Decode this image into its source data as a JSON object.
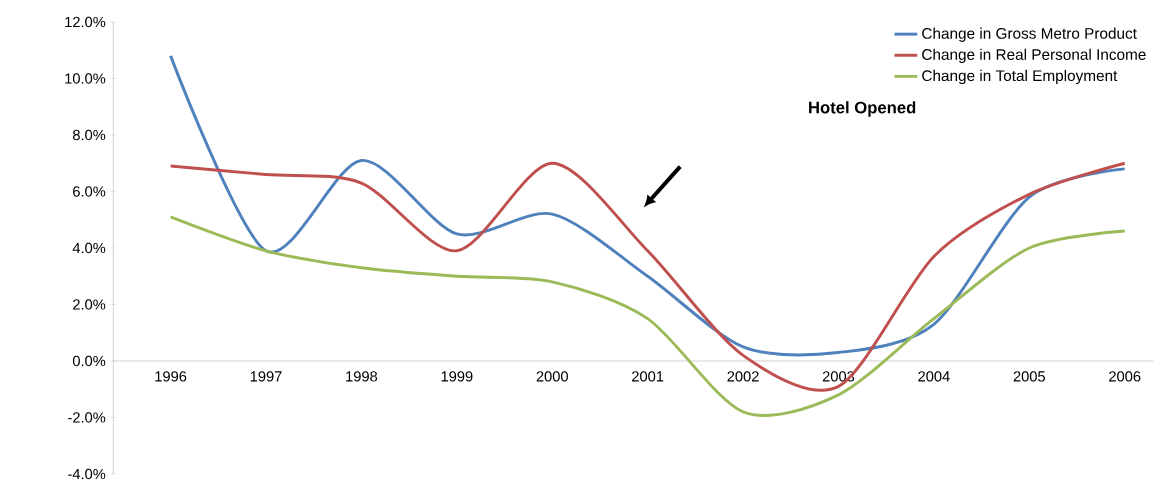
{
  "chart_data": {
    "type": "line",
    "categories": [
      "1996",
      "1997",
      "1998",
      "1999",
      "2000",
      "2001",
      "2002",
      "2003",
      "2004",
      "2005",
      "2006"
    ],
    "series": [
      {
        "name": "Change in Gross Metro Product",
        "color": "#4f81bd",
        "values": [
          10.8,
          3.9,
          7.1,
          4.5,
          5.2,
          3.0,
          0.5,
          0.3,
          1.3,
          5.8,
          6.8
        ]
      },
      {
        "name": "Change in Real Personal Income",
        "color": "#c0504d",
        "values": [
          6.9,
          6.6,
          6.3,
          3.9,
          7.0,
          3.9,
          0.2,
          -0.9,
          3.7,
          5.9,
          7.0
        ]
      },
      {
        "name": "Change in Total Employment",
        "color": "#9bbb59",
        "values": [
          5.1,
          3.9,
          3.3,
          3.0,
          2.8,
          1.5,
          -1.8,
          -1.2,
          1.5,
          4.0,
          4.6
        ]
      }
    ],
    "ylim": [
      -4,
      12
    ],
    "yticks": [
      {
        "value": -4,
        "label": "-4.0%"
      },
      {
        "value": -2,
        "label": "-2.0%"
      },
      {
        "value": 0,
        "label": "0.0%"
      },
      {
        "value": 2,
        "label": "2.0%"
      },
      {
        "value": 4,
        "label": "4.0%"
      },
      {
        "value": 6,
        "label": "6.0%"
      },
      {
        "value": 8,
        "label": "8.0%"
      },
      {
        "value": 10,
        "label": "10.0%"
      },
      {
        "value": 12,
        "label": "12.0%"
      }
    ],
    "annotations": [
      "Hotel Opened"
    ],
    "legend": "top right",
    "grid": false,
    "marker": "none",
    "line_style": "solid"
  }
}
